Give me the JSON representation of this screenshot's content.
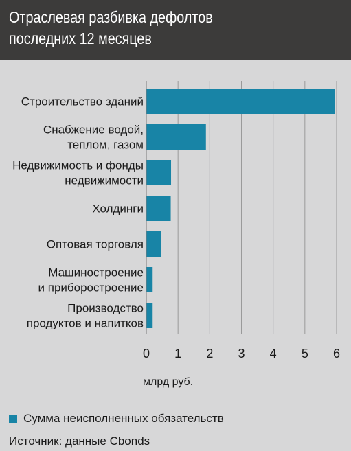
{
  "header": {
    "title": "Отраслевая разбивка дефолтов\nпоследних 12 месяцев"
  },
  "chart_data": {
    "type": "bar",
    "orientation": "horizontal",
    "categories": [
      "Строительство зданий",
      "Снабжение водой,\nтеплом, газом",
      "Недвижимость и фонды\nнедвижимости",
      "Холдинги",
      "Оптовая торговля",
      "Машиностроение\nи приборостроение",
      "Производство\nпродуктов и напитков"
    ],
    "series": [
      {
        "name": "Сумма неисполненных обязательств",
        "values": [
          5.95,
          1.88,
          0.78,
          0.77,
          0.47,
          0.2,
          0.2
        ]
      }
    ],
    "x_ticks": [
      "0",
      "1",
      "2",
      "3",
      "4",
      "5",
      "6"
    ],
    "xlim": [
      0,
      6
    ],
    "xlabel": "млрд руб.",
    "grid": true,
    "bar_color": "#1884a6",
    "legend_position": "bottom-left"
  },
  "footer": {
    "source": "Источник: данные Cbonds"
  }
}
